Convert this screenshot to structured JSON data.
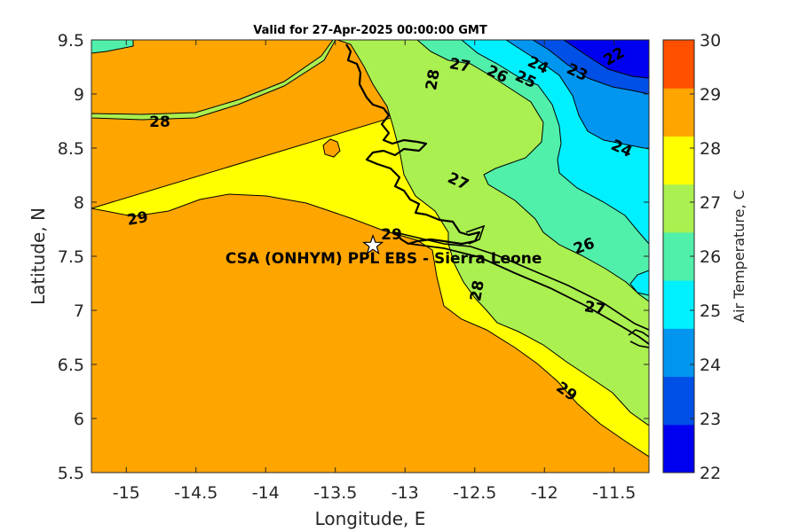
{
  "chart_data": {
    "type": "contour",
    "title": "Valid for 27-Apr-2025 00:00:00 GMT",
    "xlabel": "Longitude, E",
    "ylabel": "Latitude, N",
    "xlim": [
      -15.25,
      -11.25
    ],
    "ylim": [
      5.5,
      9.5
    ],
    "xticks": [
      "-15",
      "-14.5",
      "-14",
      "-13.5",
      "-13",
      "-12.5",
      "-12",
      "-11.5"
    ],
    "yticks": [
      "5.5",
      "6",
      "6.5",
      "7",
      "7.5",
      "8",
      "8.5",
      "9",
      "9.5"
    ],
    "colorbar": {
      "label": "Air Temperature, C",
      "ticks": [
        "22",
        "23",
        "24",
        "25",
        "26",
        "27",
        "28",
        "29",
        "30"
      ],
      "colors": [
        "#0000f0",
        "#0050e8",
        "#0096f0",
        "#00f0ff",
        "#50f0aa",
        "#aaf050",
        "#ffff00",
        "#ffa500",
        "#ff5000"
      ]
    },
    "contour_labels": [
      "28",
      "27",
      "26",
      "25",
      "24",
      "23",
      "22",
      "28",
      "24",
      "27",
      "29",
      "29",
      "26",
      "27",
      "28",
      "29"
    ],
    "site": {
      "name": "CSA (ONHYM) PPL EBS  - Sierra Leone",
      "lon": -13.23,
      "lat": 7.6
    }
  }
}
